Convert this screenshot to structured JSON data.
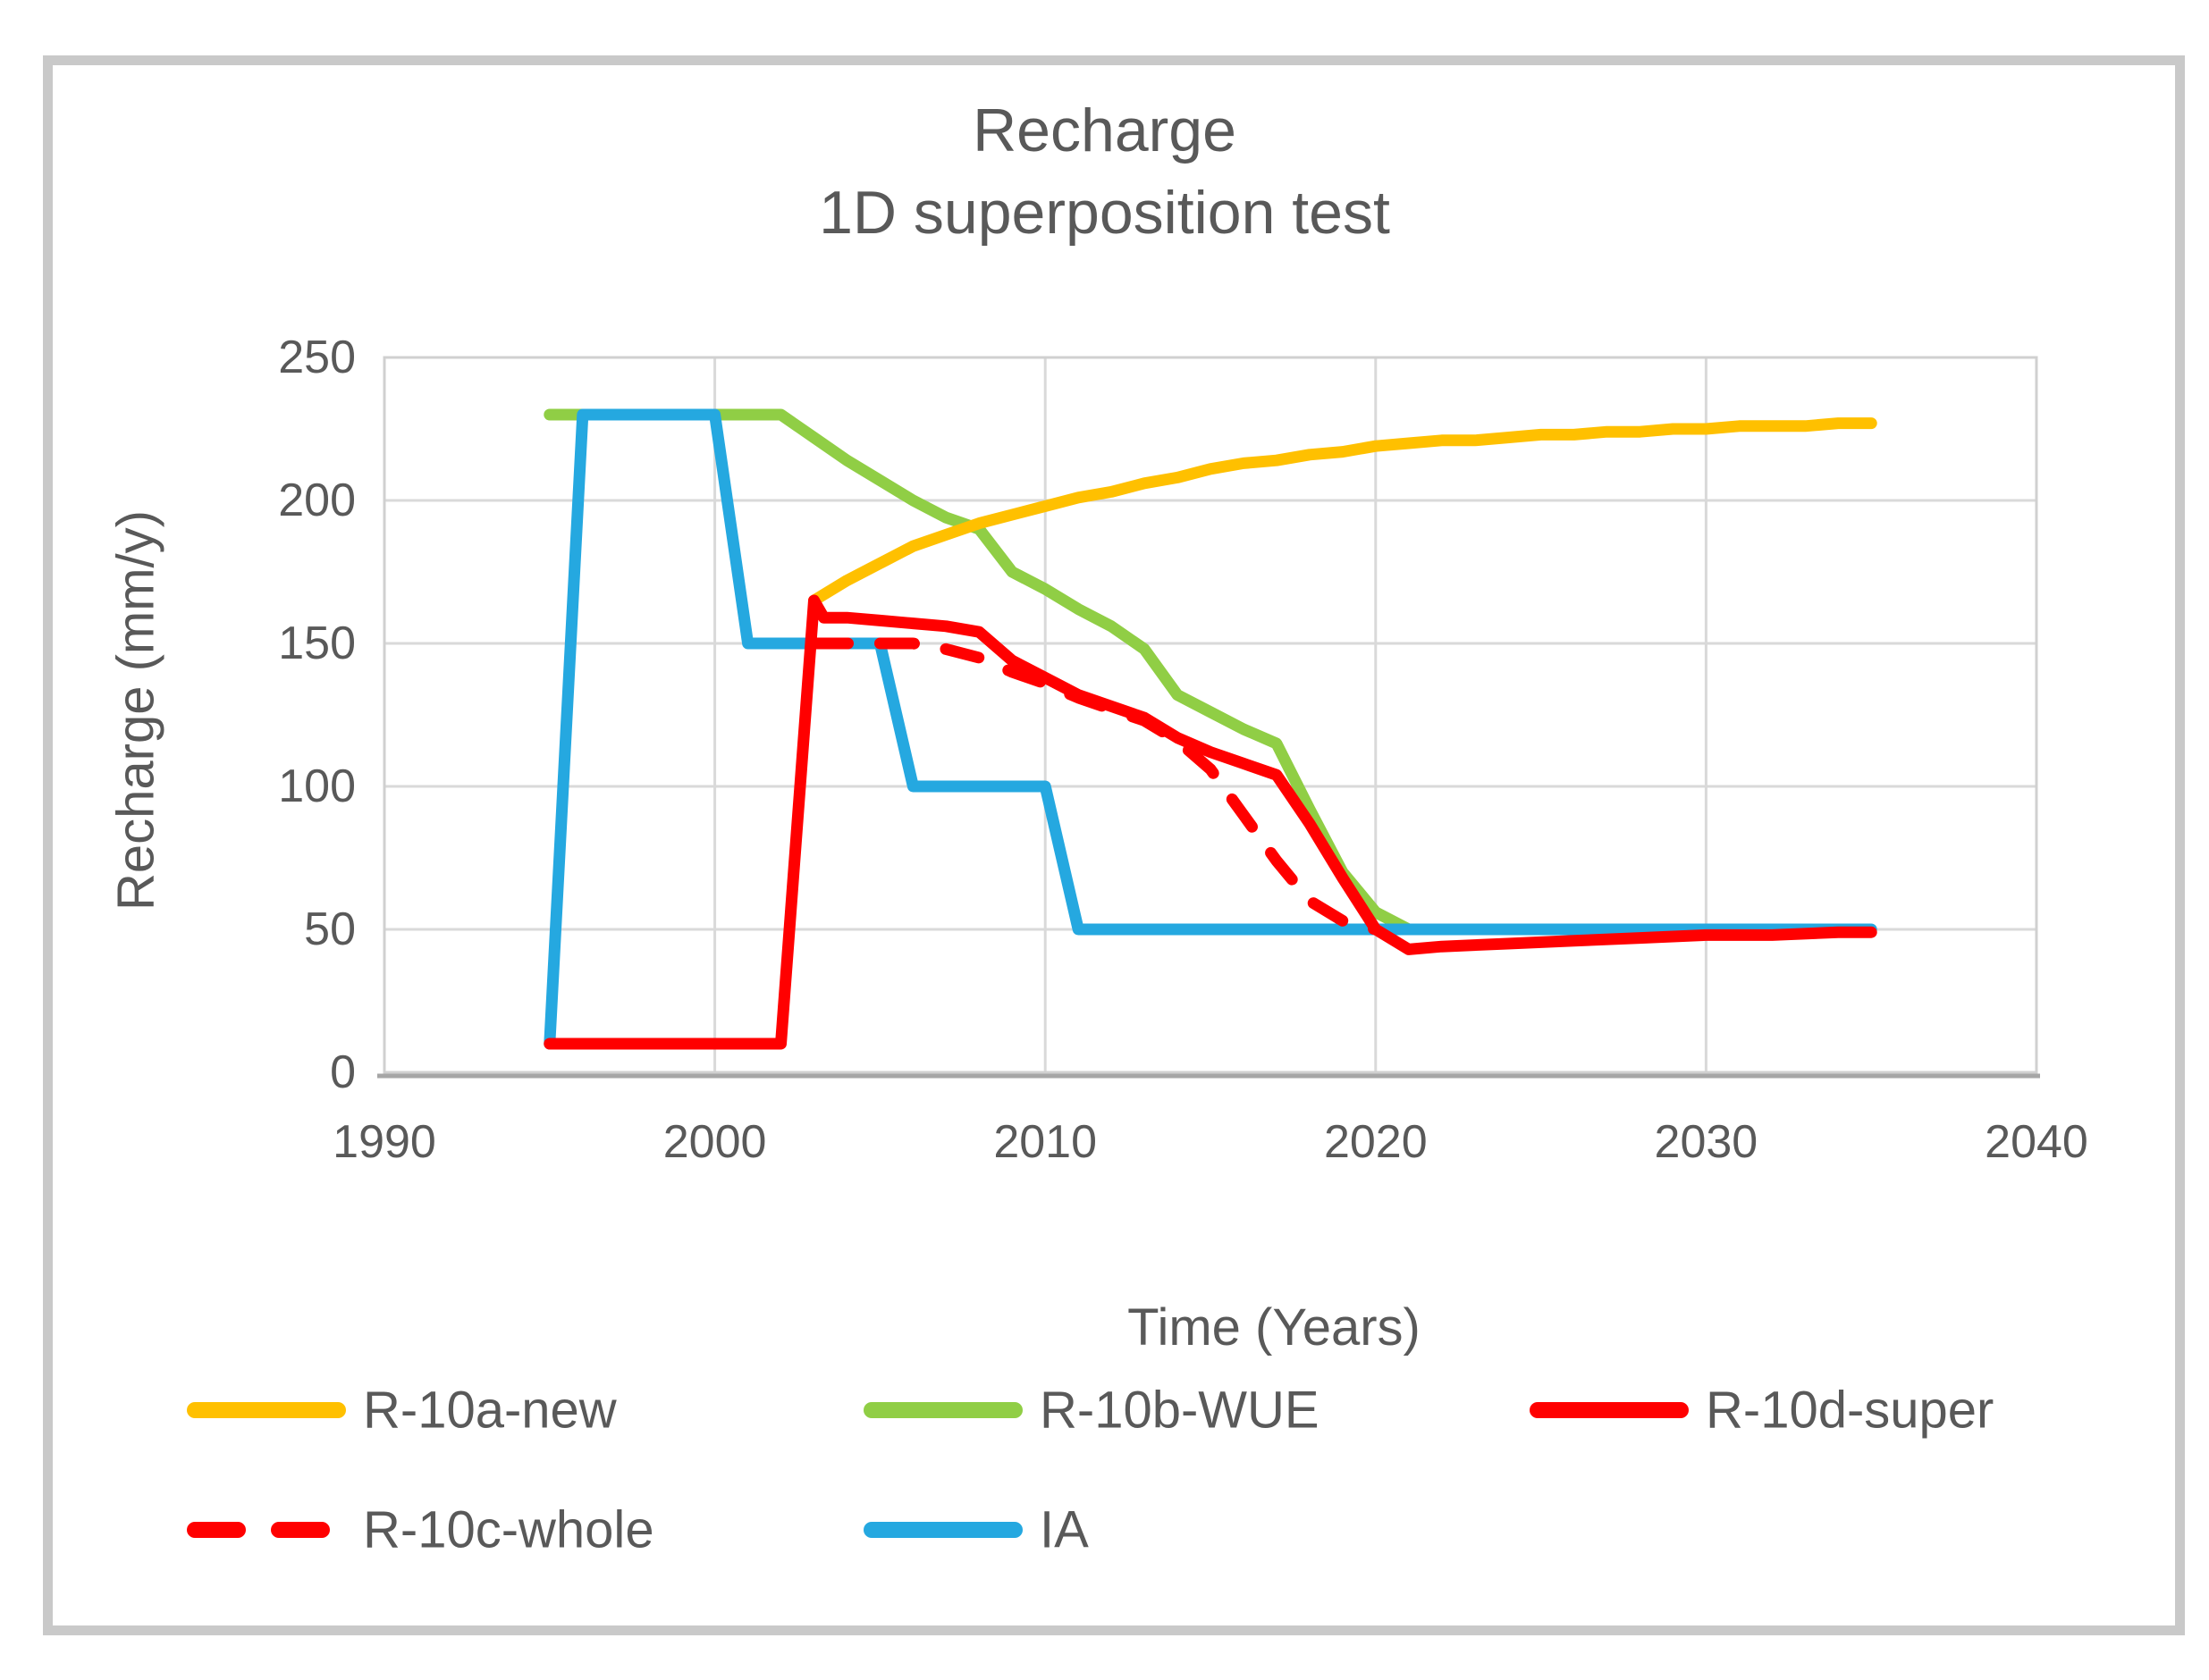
{
  "title": {
    "line1": "Recharge",
    "line2": "1D superposition test"
  },
  "axes": {
    "y": {
      "title": "Recharge (mm/y)",
      "tick_labels": [
        "0",
        "50",
        "100",
        "150",
        "200",
        "250"
      ]
    },
    "x": {
      "title": "Time (Years)",
      "tick_labels": [
        "1990",
        "2000",
        "2010",
        "2020",
        "2030",
        "2040"
      ]
    }
  },
  "ui_colors": {
    "text": "#595959",
    "gridline": "#d9d9d9",
    "plot_border": "#d0d0d0",
    "axis_line": "#a6a6a6",
    "frame_border": "#c9c9c9"
  },
  "chart_data": {
    "type": "line",
    "title": "Recharge",
    "subtitle": "1D superposition test",
    "xlabel": "Time (Years)",
    "ylabel": "Recharge (mm/y)",
    "xlim": [
      1990,
      2040
    ],
    "ylim": [
      0,
      250
    ],
    "x_ticks": [
      1990,
      2000,
      2010,
      2020,
      2030,
      2040
    ],
    "y_ticks": [
      0,
      50,
      100,
      150,
      200,
      250
    ],
    "grid": true,
    "legend_position": "bottom",
    "series": [
      {
        "name": "R-10a-new",
        "color": "#ffc000",
        "dash": false,
        "points": [
          [
            2003,
            165
          ],
          [
            2004,
            172
          ],
          [
            2005,
            178
          ],
          [
            2006,
            184
          ],
          [
            2007,
            188
          ],
          [
            2008,
            192
          ],
          [
            2009,
            195
          ],
          [
            2010,
            198
          ],
          [
            2011,
            201
          ],
          [
            2012,
            203
          ],
          [
            2013,
            206
          ],
          [
            2014,
            208
          ],
          [
            2015,
            211
          ],
          [
            2016,
            213
          ],
          [
            2017,
            214
          ],
          [
            2018,
            216
          ],
          [
            2019,
            217
          ],
          [
            2020,
            219
          ],
          [
            2021,
            220
          ],
          [
            2022,
            221
          ],
          [
            2023,
            221
          ],
          [
            2024,
            222
          ],
          [
            2025,
            223
          ],
          [
            2026,
            223
          ],
          [
            2027,
            224
          ],
          [
            2028,
            224
          ],
          [
            2029,
            225
          ],
          [
            2030,
            225
          ],
          [
            2031,
            226
          ],
          [
            2032,
            226
          ],
          [
            2033,
            226
          ],
          [
            2034,
            227
          ],
          [
            2035,
            227
          ]
        ]
      },
      {
        "name": "R-10b-WUE",
        "color": "#90ce45",
        "dash": false,
        "points": [
          [
            1995,
            230
          ],
          [
            2002,
            230
          ],
          [
            2003,
            222
          ],
          [
            2004,
            214
          ],
          [
            2005,
            207
          ],
          [
            2006,
            200
          ],
          [
            2007,
            194
          ],
          [
            2008,
            190
          ],
          [
            2009,
            175
          ],
          [
            2010,
            169
          ],
          [
            2011,
            162
          ],
          [
            2012,
            156
          ],
          [
            2013,
            148
          ],
          [
            2014,
            132
          ],
          [
            2015,
            126
          ],
          [
            2016,
            120
          ],
          [
            2017,
            115
          ],
          [
            2018,
            92
          ],
          [
            2019,
            70
          ],
          [
            2020,
            56
          ],
          [
            2021,
            50
          ]
        ]
      },
      {
        "name": "R-10d-super",
        "color": "#ff0000",
        "dash": false,
        "points": [
          [
            1995,
            10
          ],
          [
            2002,
            10
          ],
          [
            2003,
            165
          ],
          [
            2003.3,
            159
          ],
          [
            2004,
            159
          ],
          [
            2005,
            158
          ],
          [
            2006,
            157
          ],
          [
            2007,
            156
          ],
          [
            2008,
            154
          ],
          [
            2009,
            144
          ],
          [
            2010,
            138
          ],
          [
            2011,
            132
          ],
          [
            2012,
            128
          ],
          [
            2013,
            124
          ],
          [
            2014,
            117
          ],
          [
            2015,
            112
          ],
          [
            2016,
            108
          ],
          [
            2017,
            104
          ],
          [
            2018,
            87
          ],
          [
            2019,
            68
          ],
          [
            2020,
            50
          ],
          [
            2021,
            43
          ],
          [
            2022,
            44
          ],
          [
            2024,
            45
          ],
          [
            2026,
            46
          ],
          [
            2028,
            47
          ],
          [
            2030,
            48
          ],
          [
            2032,
            48
          ],
          [
            2034,
            49
          ],
          [
            2035,
            49
          ]
        ]
      },
      {
        "name": "R-10c-whole",
        "color": "#ff0000",
        "dash": true,
        "points": [
          [
            2003,
            150
          ],
          [
            2006,
            150
          ],
          [
            2007,
            148
          ],
          [
            2008,
            145
          ],
          [
            2009,
            140
          ],
          [
            2010,
            136
          ],
          [
            2011,
            131
          ],
          [
            2012,
            127
          ],
          [
            2013,
            123
          ],
          [
            2014,
            116
          ],
          [
            2015,
            106
          ],
          [
            2016,
            90
          ],
          [
            2017,
            74
          ],
          [
            2018,
            60
          ],
          [
            2019,
            53
          ],
          [
            2020,
            50
          ]
        ]
      },
      {
        "name": "IA",
        "color": "#25a8e0",
        "dash": false,
        "points": [
          [
            1995,
            10
          ],
          [
            1996,
            230
          ],
          [
            2000,
            230
          ],
          [
            2001,
            150
          ],
          [
            2005,
            150
          ],
          [
            2006,
            100
          ],
          [
            2010,
            100
          ],
          [
            2011,
            50
          ],
          [
            2035,
            50
          ]
        ]
      }
    ]
  }
}
